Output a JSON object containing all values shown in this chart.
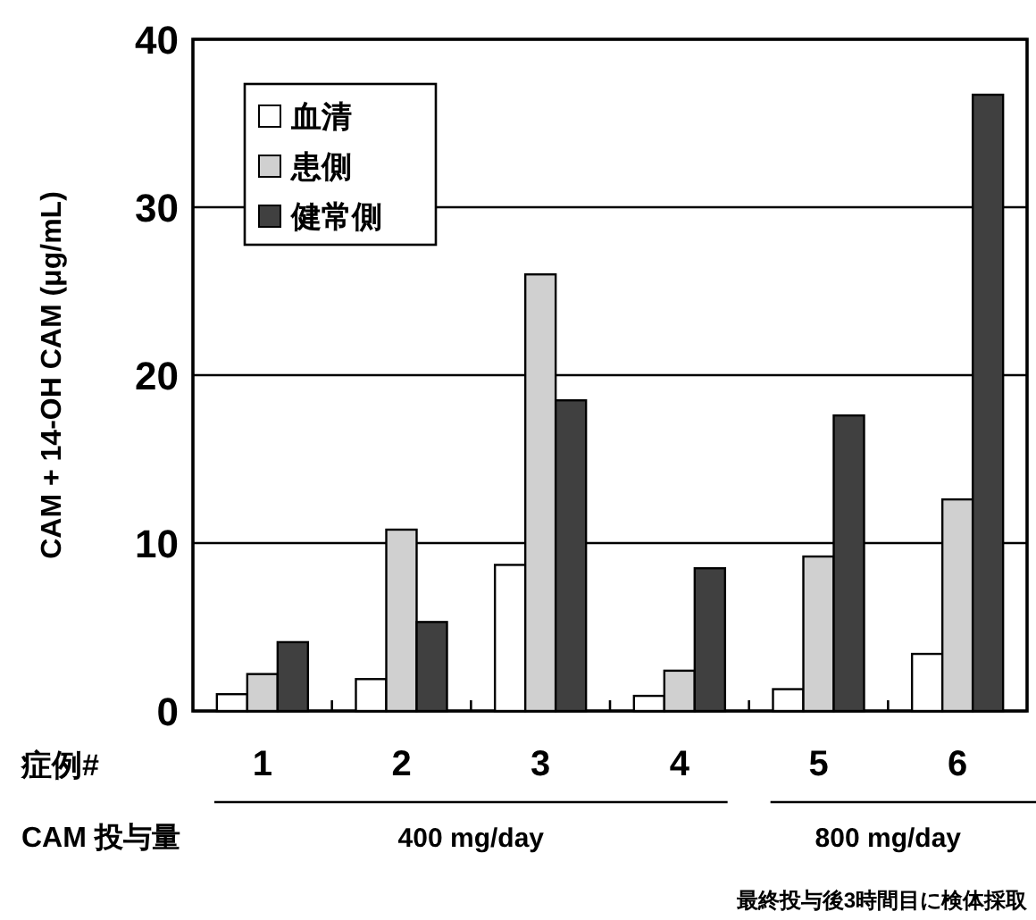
{
  "chart_data": {
    "type": "bar",
    "categories": [
      "1",
      "2",
      "3",
      "4",
      "5",
      "6"
    ],
    "ylabel": "CAM + 14-OH CAM (μg/mL)",
    "ylim": [
      0,
      40
    ],
    "yticks": [
      0,
      10,
      20,
      30,
      40
    ],
    "grid": "y",
    "legend": "top left",
    "series": [
      {
        "name": "血清",
        "color": "#ffffff",
        "values": [
          1.0,
          1.9,
          8.7,
          0.9,
          1.3,
          3.4
        ]
      },
      {
        "name": "患側",
        "color": "#d0d0d0",
        "values": [
          2.2,
          10.8,
          26.0,
          2.4,
          9.2,
          12.6
        ]
      },
      {
        "name": "健常側",
        "color": "#404040",
        "values": [
          4.1,
          5.3,
          18.5,
          8.5,
          17.6,
          36.7
        ]
      }
    ],
    "annotations": [
      "症例#",
      "CAM 投与量",
      "400 mg/day",
      "800 mg/day",
      "最終投与後3時間目に検体採取"
    ]
  }
}
